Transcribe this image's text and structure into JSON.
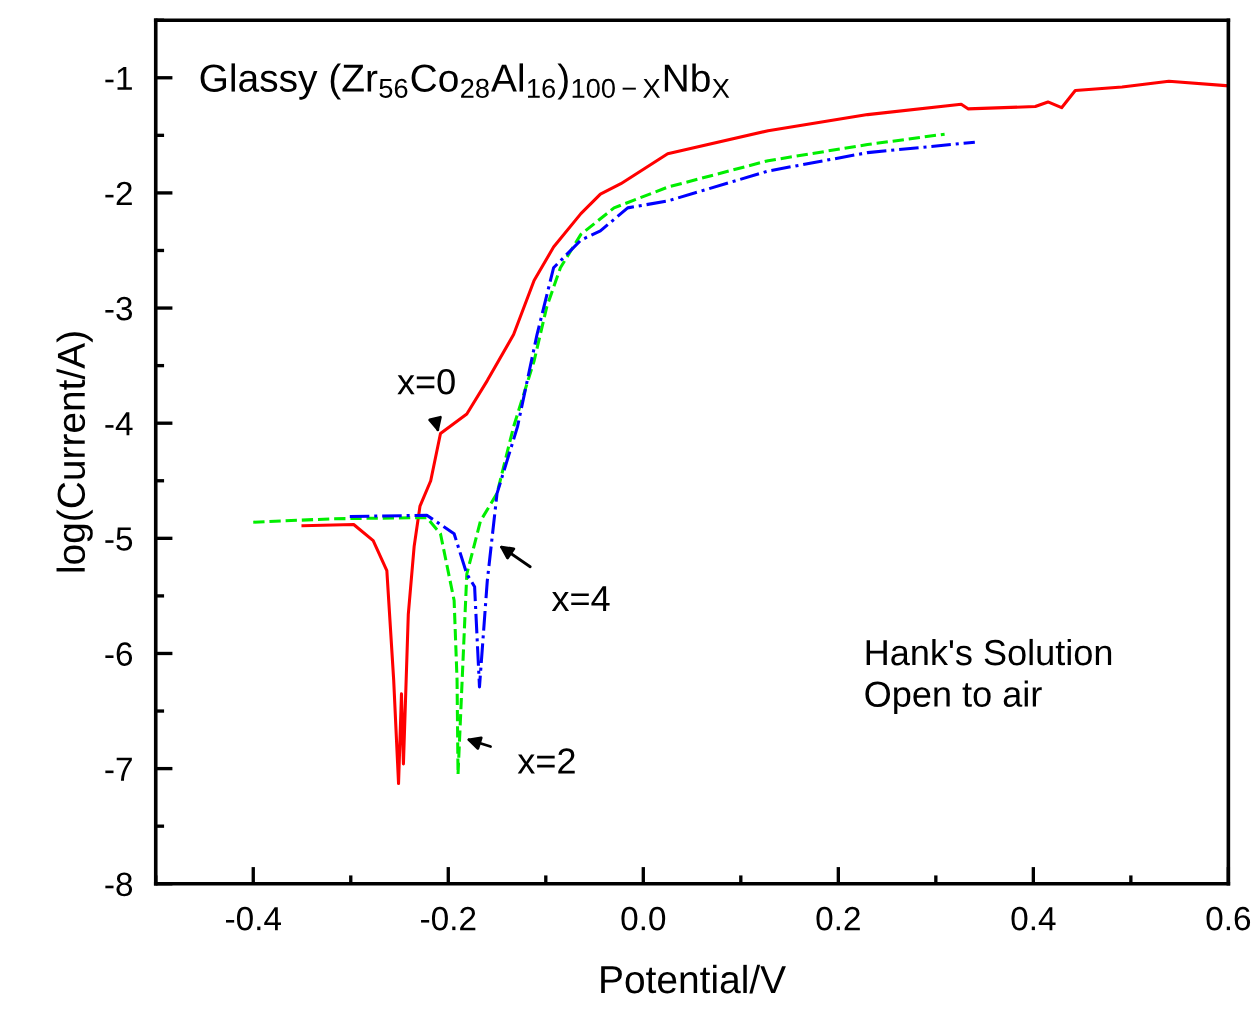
{
  "chart_data": {
    "type": "line",
    "title": "Glassy (Zr$_{56}$Co$_{28}$Al$_{16}$)$_{100−X}$Nb$_{X}$",
    "xlabel": "Potential/V",
    "ylabel": "log(Current/A)",
    "xlim": [
      -0.5,
      0.6
    ],
    "xticks": [
      -0.4,
      -0.2,
      {
        "value": 0.0,
        "label": "0.0"
      },
      0.2,
      0.4,
      0.6
    ],
    "ylim": [
      -8,
      -0.5
    ],
    "yticks": [
      -8,
      -7,
      -6,
      -5,
      -4,
      -3,
      -2,
      -1
    ],
    "grid": false,
    "legend": false,
    "marker": "none",
    "series": [
      {
        "color": "#ff0000",
        "line_style": "solid",
        "x": [
          -0.349,
          -0.297,
          -0.277,
          -0.263,
          -0.256,
          -0.251,
          -0.248,
          -0.246,
          -0.241,
          -0.235,
          -0.229,
          -0.218,
          -0.208,
          -0.181,
          -0.16,
          -0.133,
          -0.112,
          -0.092,
          -0.064,
          -0.044,
          -0.023,
          0.025,
          0.128,
          0.23,
          0.326,
          0.333,
          0.402,
          0.415,
          0.429,
          0.443,
          0.491,
          0.539,
          0.6
        ],
        "values": [
          -4.89,
          -4.88,
          -5.02,
          -5.28,
          -6.23,
          -7.13,
          -6.35,
          -6.96,
          -5.66,
          -5.07,
          -4.72,
          -4.5,
          -4.09,
          -3.92,
          -3.63,
          -3.23,
          -2.76,
          -2.47,
          -2.18,
          -2.01,
          -1.92,
          -1.66,
          -1.46,
          -1.32,
          -1.23,
          -1.27,
          -1.25,
          -1.21,
          -1.26,
          -1.11,
          -1.08,
          -1.03,
          -1.07
        ]
      },
      {
        "color": "#00ee00",
        "line_style": "dashed",
        "x": [
          -0.4,
          -0.318,
          -0.222,
          -0.208,
          -0.194,
          -0.191,
          -0.19,
          -0.181,
          -0.167,
          -0.15,
          -0.133,
          -0.112,
          -0.099,
          -0.085,
          -0.064,
          -0.03,
          0.025,
          0.128,
          0.23,
          0.309
        ],
        "values": [
          -4.86,
          -4.83,
          -4.82,
          -4.96,
          -5.54,
          -6.23,
          -7.05,
          -5.31,
          -4.85,
          -4.61,
          -4.03,
          -3.46,
          -2.99,
          -2.65,
          -2.36,
          -2.13,
          -1.95,
          -1.72,
          -1.58,
          -1.49
        ]
      },
      {
        "color": "#0000ff",
        "line_style": "dashdot",
        "x": [
          -0.301,
          -0.222,
          -0.194,
          -0.181,
          -0.173,
          -0.168,
          -0.16,
          -0.15,
          -0.129,
          -0.109,
          -0.092,
          -0.064,
          -0.044,
          -0.016,
          0.025,
          0.128,
          0.23,
          0.34
        ],
        "values": [
          -4.81,
          -4.8,
          -4.96,
          -5.31,
          -5.42,
          -6.29,
          -5.37,
          -4.61,
          -4.03,
          -3.23,
          -2.65,
          -2.41,
          -2.33,
          -2.13,
          -2.07,
          -1.81,
          -1.65,
          -1.56
        ]
      }
    ],
    "annotations": [
      {
        "text": "x=0",
        "x": -0.208,
        "y": -4.15
      },
      {
        "text": "x=4",
        "x": -0.155,
        "y": -5.02
      },
      {
        "text": "x=2",
        "x": -0.19,
        "y": -6.72
      },
      "Hank's Solution\nOpen to air"
    ]
  }
}
